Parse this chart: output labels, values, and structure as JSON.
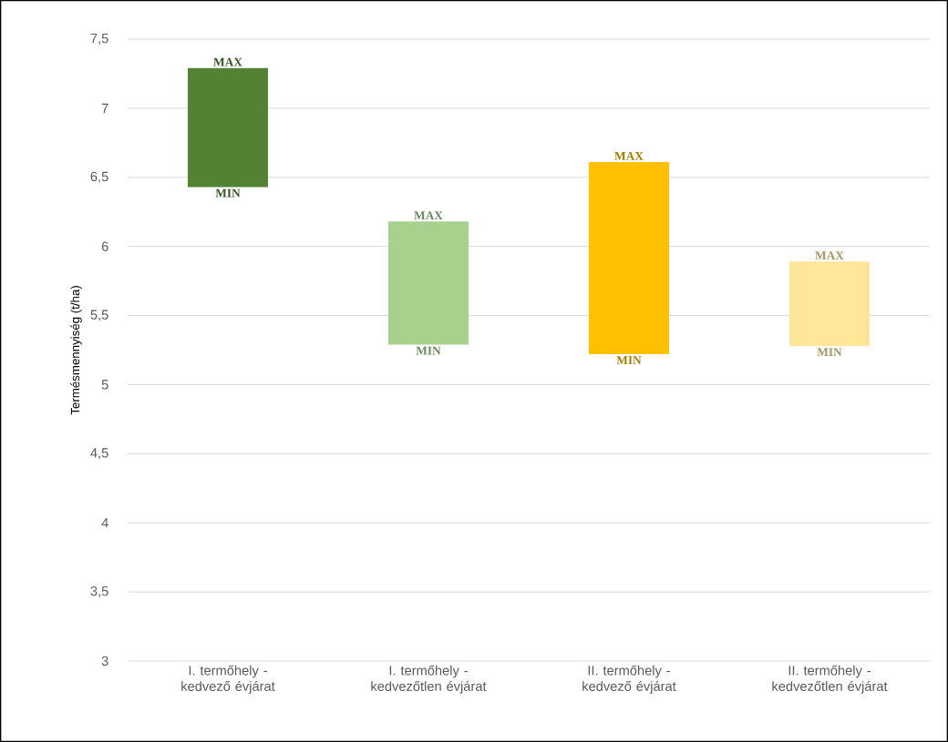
{
  "chart_data": {
    "type": "bar",
    "ylabel": "Termésmennyiség (t/ha)",
    "categories": [
      "I. termőhely - kedvező évjárat",
      "I. termőhely - kedvezőtlen évjárat",
      "II. termőhely - kedvező évjárat",
      "II. termőhely - kedvezőtlen évjárat"
    ],
    "base": [
      6.43,
      5.29,
      5.22,
      5.28
    ],
    "values": [
      0.86,
      0.89,
      1.39,
      0.61
    ],
    "colors": [
      "#548235",
      "#a9d18e",
      "#ffc000",
      "#ffe699"
    ],
    "ylim": [
      3,
      7.5
    ],
    "yticks": [
      3,
      {
        "value": 3.5,
        "label": "3,5"
      },
      4,
      {
        "value": 4.5,
        "label": "4,5"
      },
      5,
      {
        "value": 5.5,
        "label": "5,5"
      },
      6,
      {
        "value": 6.5,
        "label": "6,5"
      },
      7,
      {
        "value": 7.5,
        "label": "7,5"
      }
    ],
    "grid": "y",
    "annotations": [
      {
        "text": "MAX",
        "x": "I. termőhely - kedvező évjárat",
        "y": 7.29
      },
      {
        "text": "MIN",
        "x": "I. termőhely - kedvező évjárat",
        "y": 6.43
      },
      {
        "text": "MAX",
        "x": "I. termőhely - kedvezőtlen évjárat",
        "y": 6.18
      },
      {
        "text": "MIN",
        "x": "I. termőhely - kedvezőtlen évjárat",
        "y": 5.29
      },
      {
        "text": "MAX",
        "x": "II. termőhely - kedvező évjárat",
        "y": 6.61
      },
      {
        "text": "MIN",
        "x": "II. termőhely - kedvező évjárat",
        "y": 5.22
      },
      {
        "text": "MAX",
        "x": "II. termőhely - kedvezőtlen évjárat",
        "y": 5.89
      },
      {
        "text": "MIN",
        "x": "II. termőhely - kedvezőtlen évjárat",
        "y": 5.28
      }
    ]
  }
}
